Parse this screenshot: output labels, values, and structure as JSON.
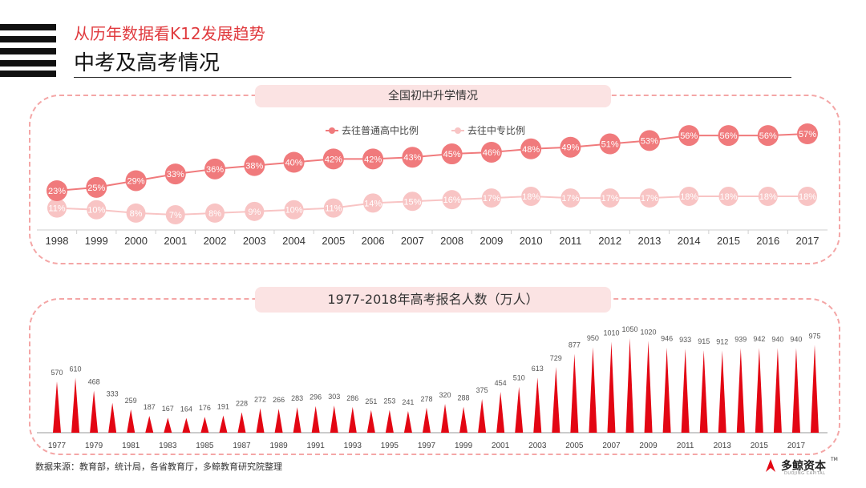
{
  "header": {
    "subtitle": "从历年数据看K12发展趋势",
    "title": "中考及高考情况"
  },
  "source_note": "数据来源：教育部，统计局，各省教育厅，多鲸教育研究院整理",
  "brand": {
    "name": "多鲸资本",
    "english": "DUOJING CAPITAL",
    "trademark": "TM"
  },
  "colors": {
    "accent": "#e03a3e",
    "series_dark": "#f07a7c",
    "series_light": "#f8c4c4",
    "bar": "#e30613"
  },
  "chart_data": [
    {
      "type": "line",
      "title": "全国初中升学情况",
      "categories": [
        "1998",
        "1999",
        "2000",
        "2001",
        "2002",
        "2003",
        "2004",
        "2005",
        "2006",
        "2007",
        "2008",
        "2009",
        "2010",
        "2011",
        "2012",
        "2013",
        "2014",
        "2015",
        "2016",
        "2017"
      ],
      "series": [
        {
          "name": "去往普通高中比例",
          "values": [
            23,
            25,
            29,
            33,
            36,
            38,
            40,
            42,
            42,
            43,
            45,
            46,
            48,
            49,
            51,
            53,
            56,
            56,
            56,
            57
          ]
        },
        {
          "name": "去往中专比例",
          "values": [
            11,
            10,
            8,
            7,
            8,
            9,
            10,
            11,
            14,
            15,
            16,
            17,
            18,
            17,
            17,
            17,
            18,
            18,
            18,
            18
          ]
        }
      ],
      "unit": "%",
      "legend": "top-center"
    },
    {
      "type": "bar",
      "title": "1977-2018年高考报名人数（万人）",
      "categories": [
        "1977",
        "1978",
        "1979",
        "1980",
        "1981",
        "1982",
        "1983",
        "1984",
        "1985",
        "1986",
        "1987",
        "1988",
        "1989",
        "1990",
        "1991",
        "1992",
        "1993",
        "1994",
        "1995",
        "1996",
        "1997",
        "1998",
        "1999",
        "2000",
        "2001",
        "2002",
        "2003",
        "2004",
        "2005",
        "2006",
        "2007",
        "2008",
        "2009",
        "2010",
        "2011",
        "2012",
        "2013",
        "2014",
        "2015",
        "2016",
        "2017",
        "2018"
      ],
      "values": [
        570,
        610,
        468,
        333,
        259,
        187,
        167,
        164,
        176,
        191,
        228,
        272,
        266,
        283,
        296,
        303,
        286,
        251,
        253,
        241,
        278,
        320,
        288,
        375,
        454,
        510,
        613,
        729,
        877,
        950,
        1010,
        1050,
        1020,
        946,
        933,
        915,
        912,
        939,
        942,
        940,
        940,
        975
      ],
      "axis_labels": [
        "1977",
        "1979",
        "1981",
        "1983",
        "1985",
        "1987",
        "1989",
        "1991",
        "1993",
        "1995",
        "1997",
        "1999",
        "2001",
        "2003",
        "2005",
        "2007",
        "2009",
        "2011",
        "2013",
        "2015",
        "2017"
      ],
      "unit": "万人"
    }
  ]
}
